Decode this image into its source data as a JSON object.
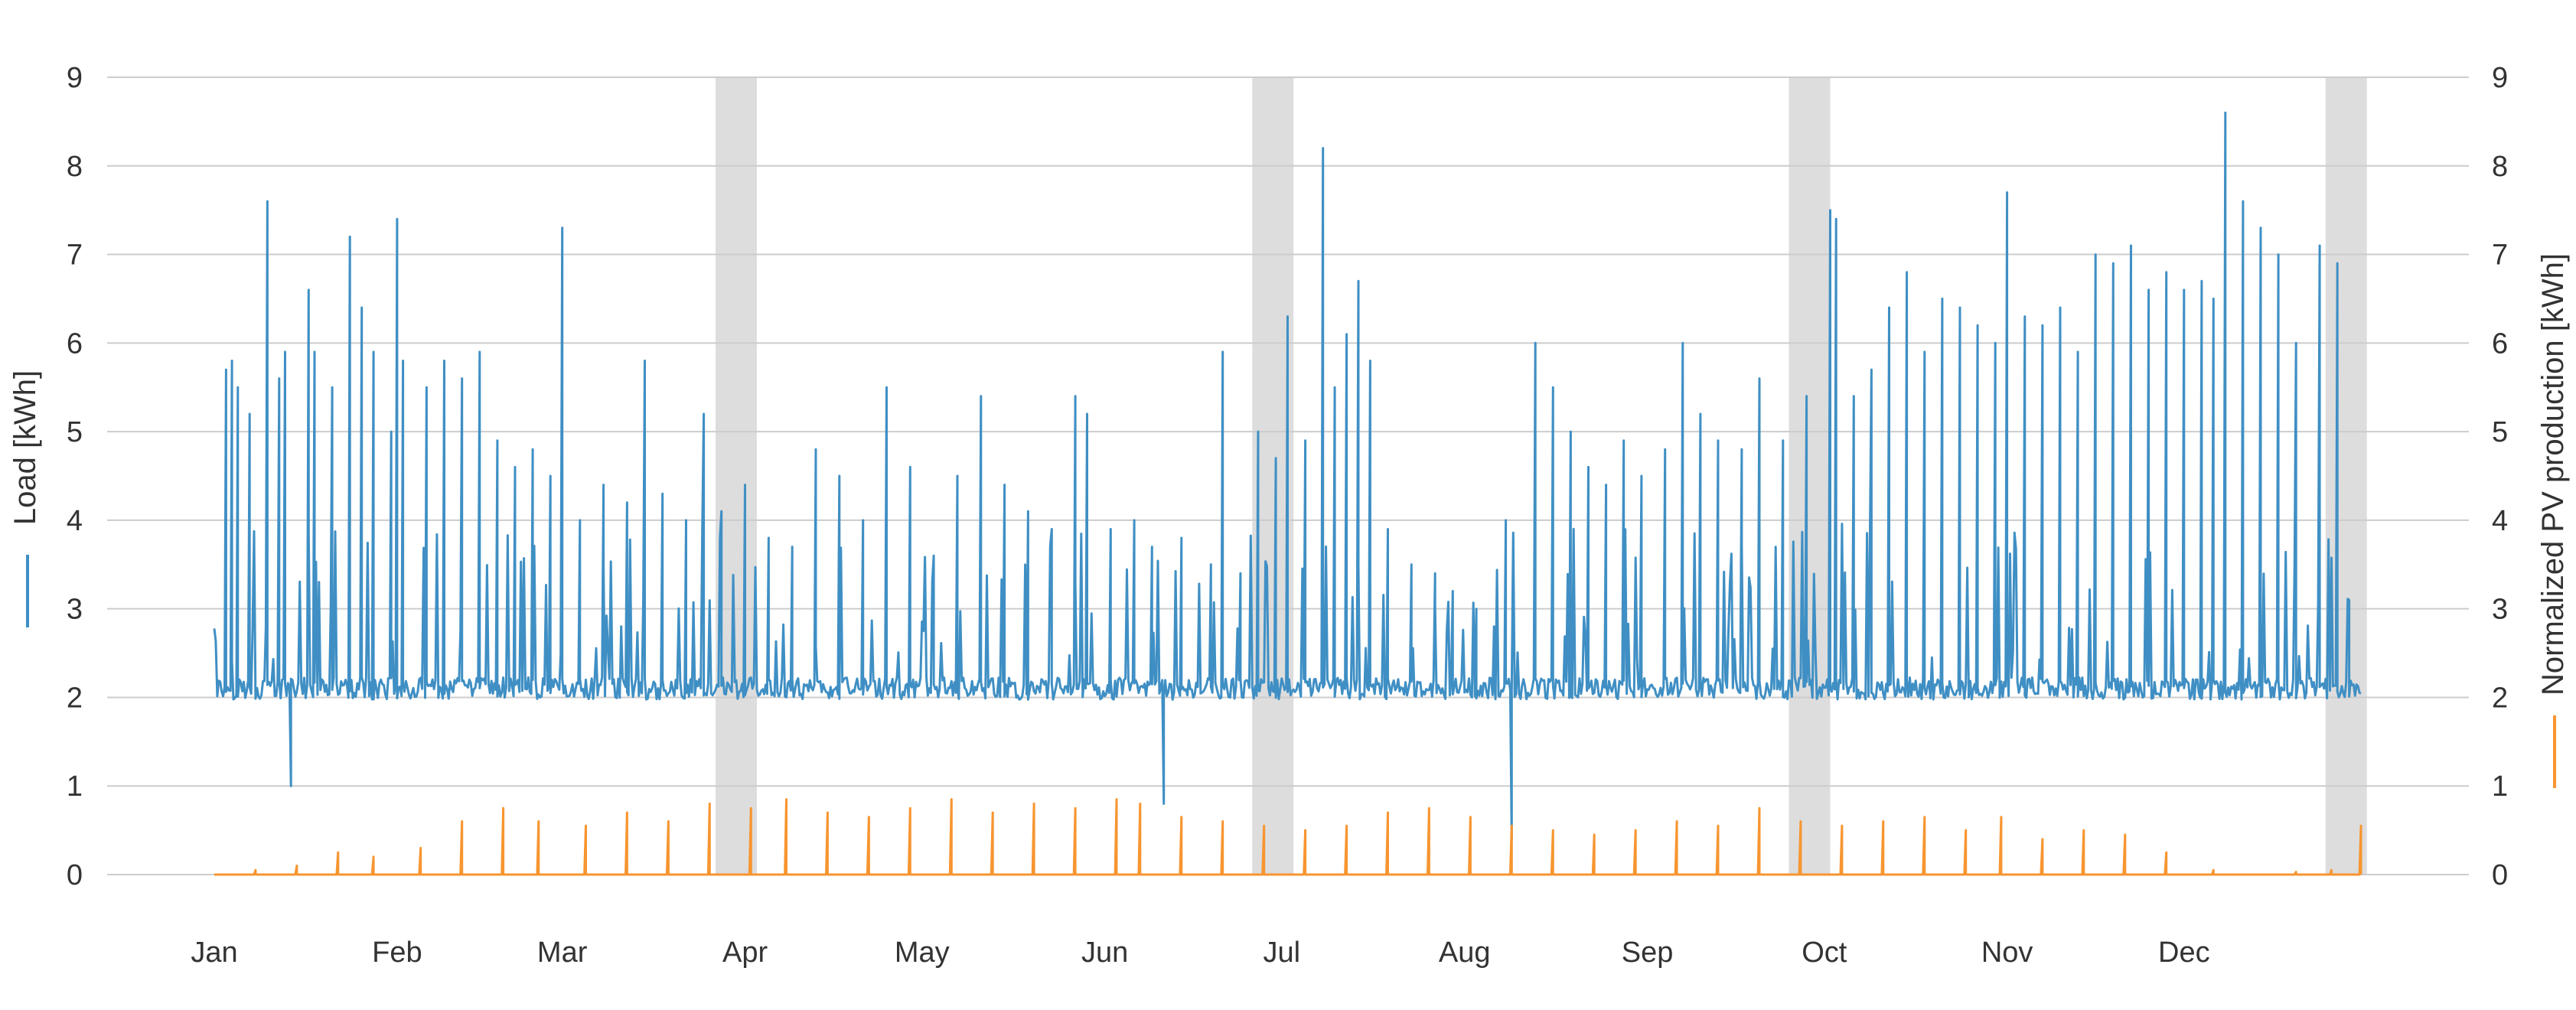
{
  "chart_data": {
    "type": "line",
    "title": "",
    "grid": true,
    "legend": "none",
    "x_axis": {
      "type": "date",
      "range": [
        "2019-01-01",
        "2019-12-31"
      ],
      "tick_labels": [
        "Jan",
        "Feb",
        "Mar",
        "Apr",
        "May",
        "Jun",
        "Jul",
        "Aug",
        "Sep",
        "Oct",
        "Nov",
        "Dec"
      ],
      "tick_dates": [
        "2019-01-01",
        "2019-02-01",
        "2019-03-01",
        "2019-04-01",
        "2019-05-01",
        "2019-06-01",
        "2019-07-01",
        "2019-08-01",
        "2019-09-01",
        "2019-10-01",
        "2019-11-01",
        "2019-12-01"
      ]
    },
    "y_left": {
      "label": "Load [kWh]",
      "range": [
        0,
        9
      ],
      "ticks": [
        0,
        1,
        2,
        3,
        4,
        5,
        6,
        7,
        8,
        9
      ],
      "tick_labels": [
        "0",
        "1",
        "2",
        "3",
        "4",
        "5",
        "6",
        "7",
        "8",
        "9"
      ]
    },
    "y_right": {
      "label": "Normalized PV production [kWh]",
      "range": [
        0,
        9
      ],
      "ticks": [
        0,
        1,
        2,
        3,
        4,
        5,
        6,
        7,
        8,
        9
      ],
      "tick_labels": [
        "0",
        "1",
        "2",
        "3",
        "4",
        "5",
        "6",
        "7",
        "8",
        "9"
      ]
    },
    "shaded_periods": [
      [
        "2019-03-27",
        "2019-04-03"
      ],
      [
        "2019-06-26",
        "2019-07-03"
      ],
      [
        "2019-09-25",
        "2019-10-02"
      ],
      [
        "2019-12-25",
        "2020-01-01"
      ]
    ],
    "series": [
      {
        "key": "load",
        "axis": "left",
        "color": "#3f8fc4",
        "x_range": [
          "2019-01-01",
          "2019-12-31"
        ],
        "baseline": 2.1,
        "peaks": [
          [
            "2019-01-03",
            5.7
          ],
          [
            "2019-01-04",
            5.8
          ],
          [
            "2019-01-05",
            5.5
          ],
          [
            "2019-01-07",
            5.2
          ],
          [
            "2019-01-10",
            7.6
          ],
          [
            "2019-01-12",
            5.6
          ],
          [
            "2019-01-13",
            5.9
          ],
          [
            "2019-01-14",
            1.0
          ],
          [
            "2019-01-17",
            6.6
          ],
          [
            "2019-01-18",
            5.9
          ],
          [
            "2019-01-21",
            5.5
          ],
          [
            "2019-01-24",
            7.2
          ],
          [
            "2019-01-26",
            6.4
          ],
          [
            "2019-01-28",
            5.9
          ],
          [
            "2019-01-31",
            5.0
          ],
          [
            "2019-02-01",
            7.4
          ],
          [
            "2019-02-02",
            5.8
          ],
          [
            "2019-02-06",
            5.5
          ],
          [
            "2019-02-09",
            5.8
          ],
          [
            "2019-02-12",
            5.6
          ],
          [
            "2019-02-15",
            5.9
          ],
          [
            "2019-02-18",
            4.9
          ],
          [
            "2019-02-21",
            4.6
          ],
          [
            "2019-02-24",
            4.8
          ],
          [
            "2019-02-27",
            4.5
          ],
          [
            "2019-03-01",
            7.3
          ],
          [
            "2019-03-04",
            4.0
          ],
          [
            "2019-03-08",
            4.4
          ],
          [
            "2019-03-12",
            4.2
          ],
          [
            "2019-03-15",
            5.8
          ],
          [
            "2019-03-18",
            4.3
          ],
          [
            "2019-03-22",
            4.0
          ],
          [
            "2019-03-25",
            5.2
          ],
          [
            "2019-03-28",
            4.1
          ],
          [
            "2019-04-01",
            4.4
          ],
          [
            "2019-04-05",
            3.8
          ],
          [
            "2019-04-09",
            3.7
          ],
          [
            "2019-04-13",
            4.8
          ],
          [
            "2019-04-17",
            4.5
          ],
          [
            "2019-04-21",
            4.0
          ],
          [
            "2019-04-25",
            5.5
          ],
          [
            "2019-04-29",
            4.6
          ],
          [
            "2019-05-03",
            3.6
          ],
          [
            "2019-05-07",
            4.5
          ],
          [
            "2019-05-11",
            5.4
          ],
          [
            "2019-05-15",
            4.4
          ],
          [
            "2019-05-19",
            4.1
          ],
          [
            "2019-05-23",
            3.9
          ],
          [
            "2019-05-27",
            5.4
          ],
          [
            "2019-05-29",
            5.2
          ],
          [
            "2019-06-02",
            3.9
          ],
          [
            "2019-06-06",
            4.0
          ],
          [
            "2019-06-09",
            3.7
          ],
          [
            "2019-06-11",
            0.8
          ],
          [
            "2019-06-14",
            3.8
          ],
          [
            "2019-06-19",
            3.5
          ],
          [
            "2019-06-21",
            5.9
          ],
          [
            "2019-06-24",
            3.4
          ],
          [
            "2019-06-27",
            5.0
          ],
          [
            "2019-06-30",
            4.7
          ],
          [
            "2019-07-02",
            6.3
          ],
          [
            "2019-07-05",
            4.9
          ],
          [
            "2019-07-08",
            8.2
          ],
          [
            "2019-07-10",
            5.5
          ],
          [
            "2019-07-12",
            6.1
          ],
          [
            "2019-07-14",
            6.7
          ],
          [
            "2019-07-16",
            5.8
          ],
          [
            "2019-07-19",
            3.9
          ],
          [
            "2019-07-23",
            3.5
          ],
          [
            "2019-07-27",
            3.4
          ],
          [
            "2019-07-30",
            3.2
          ],
          [
            "2019-08-03",
            3.0
          ],
          [
            "2019-08-06",
            2.8
          ],
          [
            "2019-08-08",
            4.0
          ],
          [
            "2019-08-09",
            0.4
          ],
          [
            "2019-08-13",
            6.0
          ],
          [
            "2019-08-16",
            5.5
          ],
          [
            "2019-08-19",
            5.0
          ],
          [
            "2019-08-22",
            4.6
          ],
          [
            "2019-08-25",
            4.4
          ],
          [
            "2019-08-28",
            4.9
          ],
          [
            "2019-08-31",
            4.5
          ],
          [
            "2019-09-04",
            4.8
          ],
          [
            "2019-09-07",
            6.0
          ],
          [
            "2019-09-10",
            5.2
          ],
          [
            "2019-09-13",
            4.9
          ],
          [
            "2019-09-17",
            4.8
          ],
          [
            "2019-09-20",
            5.6
          ],
          [
            "2019-09-24",
            4.9
          ],
          [
            "2019-09-28",
            5.4
          ],
          [
            "2019-10-02",
            7.5
          ],
          [
            "2019-10-03",
            7.4
          ],
          [
            "2019-10-06",
            5.4
          ],
          [
            "2019-10-09",
            5.7
          ],
          [
            "2019-10-12",
            6.4
          ],
          [
            "2019-10-15",
            6.8
          ],
          [
            "2019-10-18",
            5.9
          ],
          [
            "2019-10-21",
            6.5
          ],
          [
            "2019-10-24",
            6.4
          ],
          [
            "2019-10-27",
            6.2
          ],
          [
            "2019-10-30",
            6.0
          ],
          [
            "2019-11-01",
            7.7
          ],
          [
            "2019-11-04",
            6.3
          ],
          [
            "2019-11-07",
            6.2
          ],
          [
            "2019-11-10",
            6.4
          ],
          [
            "2019-11-13",
            5.9
          ],
          [
            "2019-11-16",
            7.0
          ],
          [
            "2019-11-19",
            6.9
          ],
          [
            "2019-11-22",
            7.1
          ],
          [
            "2019-11-25",
            6.6
          ],
          [
            "2019-11-28",
            6.8
          ],
          [
            "2019-12-01",
            6.6
          ],
          [
            "2019-12-04",
            6.7
          ],
          [
            "2019-12-06",
            6.5
          ],
          [
            "2019-12-08",
            8.6
          ],
          [
            "2019-12-11",
            7.6
          ],
          [
            "2019-12-14",
            7.3
          ],
          [
            "2019-12-17",
            7.0
          ],
          [
            "2019-12-20",
            6.0
          ],
          [
            "2019-12-24",
            7.1
          ],
          [
            "2019-12-27",
            6.9
          ],
          [
            "2019-12-29",
            3.1
          ]
        ]
      },
      {
        "key": "pv",
        "axis": "right",
        "color": "#f79530",
        "x_range": [
          "2019-01-01",
          "2019-12-31"
        ],
        "baseline": 0.0,
        "peaks": [
          [
            "2019-01-08",
            0.05
          ],
          [
            "2019-01-15",
            0.1
          ],
          [
            "2019-01-22",
            0.25
          ],
          [
            "2019-01-28",
            0.2
          ],
          [
            "2019-02-05",
            0.3
          ],
          [
            "2019-02-12",
            0.6
          ],
          [
            "2019-02-19",
            0.75
          ],
          [
            "2019-02-25",
            0.6
          ],
          [
            "2019-03-05",
            0.55
          ],
          [
            "2019-03-12",
            0.7
          ],
          [
            "2019-03-19",
            0.6
          ],
          [
            "2019-03-26",
            0.8
          ],
          [
            "2019-04-02",
            0.75
          ],
          [
            "2019-04-08",
            0.85
          ],
          [
            "2019-04-15",
            0.7
          ],
          [
            "2019-04-22",
            0.65
          ],
          [
            "2019-04-29",
            0.75
          ],
          [
            "2019-05-06",
            0.85
          ],
          [
            "2019-05-13",
            0.7
          ],
          [
            "2019-05-20",
            0.8
          ],
          [
            "2019-05-27",
            0.75
          ],
          [
            "2019-06-03",
            0.85
          ],
          [
            "2019-06-07",
            0.8
          ],
          [
            "2019-06-14",
            0.65
          ],
          [
            "2019-06-21",
            0.6
          ],
          [
            "2019-06-28",
            0.55
          ],
          [
            "2019-07-05",
            0.5
          ],
          [
            "2019-07-12",
            0.55
          ],
          [
            "2019-07-19",
            0.7
          ],
          [
            "2019-07-26",
            0.75
          ],
          [
            "2019-08-02",
            0.65
          ],
          [
            "2019-08-09",
            0.55
          ],
          [
            "2019-08-16",
            0.5
          ],
          [
            "2019-08-23",
            0.45
          ],
          [
            "2019-08-30",
            0.5
          ],
          [
            "2019-09-06",
            0.6
          ],
          [
            "2019-09-13",
            0.55
          ],
          [
            "2019-09-20",
            0.75
          ],
          [
            "2019-09-27",
            0.6
          ],
          [
            "2019-10-04",
            0.55
          ],
          [
            "2019-10-11",
            0.6
          ],
          [
            "2019-10-18",
            0.65
          ],
          [
            "2019-10-25",
            0.5
          ],
          [
            "2019-10-31",
            0.65
          ],
          [
            "2019-11-07",
            0.4
          ],
          [
            "2019-11-14",
            0.5
          ],
          [
            "2019-11-21",
            0.45
          ],
          [
            "2019-11-28",
            0.25
          ],
          [
            "2019-12-06",
            0.05
          ],
          [
            "2019-12-20",
            0.03
          ],
          [
            "2019-12-26",
            0.05
          ],
          [
            "2019-12-31",
            0.55
          ]
        ]
      }
    ]
  }
}
